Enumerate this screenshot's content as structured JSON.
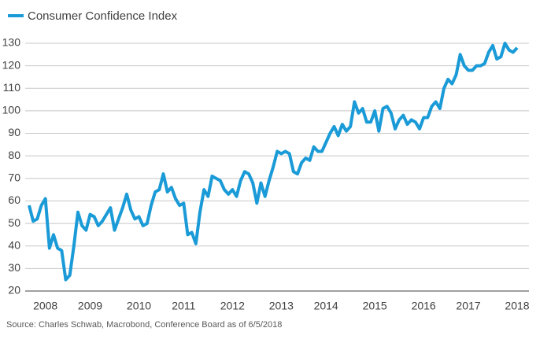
{
  "chart_data": {
    "type": "line",
    "source": "Source: Charles Schwab, Macrobond, Conference Board as of 6/5/2018",
    "categories": [
      null,
      null,
      null,
      null,
      "2008",
      null,
      null,
      null,
      null,
      null,
      null,
      null,
      null,
      null,
      null,
      "2009",
      null,
      null,
      null,
      null,
      null,
      null,
      null,
      null,
      null,
      null,
      null,
      "2010",
      null,
      null,
      null,
      null,
      null,
      null,
      null,
      null,
      null,
      null,
      "2011",
      null,
      null,
      null,
      null,
      null,
      null,
      null,
      null,
      null,
      null,
      null,
      "2012",
      null,
      null,
      null,
      null,
      null,
      null,
      null,
      null,
      null,
      null,
      null,
      "2013",
      null,
      null,
      null,
      null,
      null,
      null,
      null,
      null,
      null,
      null,
      "2014",
      null,
      null,
      null,
      null,
      null,
      null,
      null,
      null,
      null,
      null,
      null,
      "2015",
      null,
      null,
      null,
      null,
      null,
      null,
      null,
      null,
      null,
      null,
      null,
      "2016",
      null,
      null,
      null,
      null,
      null,
      null,
      null,
      null,
      null,
      null,
      "2017",
      null,
      null,
      null,
      null,
      null,
      null,
      null,
      null,
      null,
      null,
      null,
      "2018"
    ],
    "series": [
      {
        "name": "Consumer Confidence Index",
        "color": "#1a9bd7",
        "values": [
          58,
          51,
          52,
          58,
          61,
          39,
          45,
          39,
          38,
          25,
          27,
          40,
          55,
          49,
          47,
          54,
          53,
          49,
          51,
          54,
          57,
          47,
          52,
          57,
          63,
          56,
          52,
          53,
          49,
          50,
          58,
          64,
          65,
          72,
          64,
          66,
          61,
          58,
          59,
          45,
          46,
          41,
          55,
          65,
          62,
          71,
          70,
          69,
          65,
          63,
          65,
          62,
          69,
          73,
          72,
          68,
          59,
          68,
          62,
          69,
          75,
          82,
          81,
          82,
          81,
          73,
          72,
          77,
          79,
          78,
          84,
          82,
          82,
          86,
          90,
          93,
          89,
          94,
          91,
          93,
          104,
          99,
          101,
          95,
          95,
          100,
          91,
          101,
          102,
          99,
          92,
          96,
          98,
          94,
          96,
          95,
          92,
          97,
          97,
          102,
          104,
          101,
          110,
          114,
          112,
          116,
          125,
          120,
          118,
          118,
          120,
          120,
          121,
          126,
          129,
          123,
          124,
          130,
          127,
          126,
          128
        ]
      }
    ],
    "ylim": [
      20,
      130
    ],
    "yticks": [
      20,
      30,
      40,
      50,
      60,
      70,
      80,
      90,
      100,
      110,
      120,
      130
    ],
    "grid": true
  }
}
